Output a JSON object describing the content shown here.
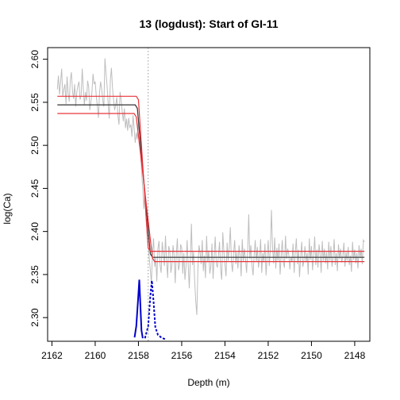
{
  "chart_data": {
    "type": "line",
    "title": "13 (logdust): Start of GI-11",
    "xlabel": "Depth (m)",
    "ylabel": "log(Ca)",
    "xlim": [
      2162.2,
      2147.3
    ],
    "ylim": [
      2.2725,
      2.6135
    ],
    "x_reversed": true,
    "x_ticks": [
      2162,
      2160,
      2158,
      2156,
      2154,
      2152,
      2150,
      2148
    ],
    "x_tick_labels": [
      "2162",
      "2160",
      "2158",
      "2156",
      "2154",
      "2152",
      "2150",
      "2148"
    ],
    "y_ticks": [
      2.3,
      2.35,
      2.4,
      2.45,
      2.5,
      2.55,
      2.6
    ],
    "y_tick_labels": [
      "2.30",
      "2.35",
      "2.40",
      "2.45",
      "2.50",
      "2.55",
      "2.60"
    ],
    "grid": false,
    "vertical_line": {
      "x": 2157.55,
      "color": "#999999",
      "style": "dotted"
    },
    "raw_series": {
      "color": "#bebebe",
      "x_start": 2161.75,
      "x_end": 2147.55,
      "points": [
        [
          2161.75,
          2.565
        ],
        [
          2161.7,
          2.581
        ],
        [
          2161.65,
          2.559
        ],
        [
          2161.6,
          2.574
        ],
        [
          2161.55,
          2.589
        ],
        [
          2161.5,
          2.557
        ],
        [
          2161.45,
          2.565
        ],
        [
          2161.4,
          2.571
        ],
        [
          2161.35,
          2.548
        ],
        [
          2161.3,
          2.58
        ],
        [
          2161.25,
          2.56
        ],
        [
          2161.2,
          2.551
        ],
        [
          2161.15,
          2.576
        ],
        [
          2161.1,
          2.585
        ],
        [
          2161.05,
          2.563
        ],
        [
          2161.0,
          2.554
        ],
        [
          2160.95,
          2.571
        ],
        [
          2160.9,
          2.545
        ],
        [
          2160.85,
          2.562
        ],
        [
          2160.8,
          2.569
        ],
        [
          2160.75,
          2.574
        ],
        [
          2160.7,
          2.553
        ],
        [
          2160.65,
          2.558
        ],
        [
          2160.6,
          2.589
        ],
        [
          2160.55,
          2.566
        ],
        [
          2160.5,
          2.547
        ],
        [
          2160.45,
          2.562
        ],
        [
          2160.4,
          2.552
        ],
        [
          2160.35,
          2.575
        ],
        [
          2160.3,
          2.568
        ],
        [
          2160.25,
          2.541
        ],
        [
          2160.2,
          2.55
        ],
        [
          2160.15,
          2.562
        ],
        [
          2160.1,
          2.583
        ],
        [
          2160.05,
          2.571
        ],
        [
          2160.0,
          2.574
        ],
        [
          2159.95,
          2.557
        ],
        [
          2159.9,
          2.546
        ],
        [
          2159.85,
          2.532
        ],
        [
          2159.8,
          2.561
        ],
        [
          2159.75,
          2.574
        ],
        [
          2159.7,
          2.565
        ],
        [
          2159.65,
          2.552
        ],
        [
          2159.6,
          2.545
        ],
        [
          2159.55,
          2.601
        ],
        [
          2159.5,
          2.584
        ],
        [
          2159.45,
          2.569
        ],
        [
          2159.4,
          2.549
        ],
        [
          2159.35,
          2.531
        ],
        [
          2159.3,
          2.575
        ],
        [
          2159.25,
          2.59
        ],
        [
          2159.2,
          2.567
        ],
        [
          2159.15,
          2.553
        ],
        [
          2159.1,
          2.541
        ],
        [
          2159.05,
          2.547
        ],
        [
          2159.0,
          2.556
        ],
        [
          2158.95,
          2.535
        ],
        [
          2158.9,
          2.524
        ],
        [
          2158.85,
          2.562
        ],
        [
          2158.8,
          2.553
        ],
        [
          2158.75,
          2.539
        ],
        [
          2158.7,
          2.528
        ],
        [
          2158.65,
          2.543
        ],
        [
          2158.6,
          2.52
        ],
        [
          2158.55,
          2.531
        ],
        [
          2158.5,
          2.517
        ],
        [
          2158.45,
          2.532
        ],
        [
          2158.4,
          2.521
        ],
        [
          2158.35,
          2.524
        ],
        [
          2158.3,
          2.51
        ],
        [
          2158.25,
          2.535
        ],
        [
          2158.2,
          2.52
        ],
        [
          2158.15,
          2.503
        ],
        [
          2158.1,
          2.515
        ],
        [
          2158.05,
          2.507
        ],
        [
          2158.0,
          2.527
        ],
        [
          2157.95,
          2.514
        ],
        [
          2157.9,
          2.492
        ],
        [
          2157.85,
          2.468
        ],
        [
          2157.8,
          2.45
        ],
        [
          2157.75,
          2.426
        ],
        [
          2157.7,
          2.448
        ],
        [
          2157.65,
          2.415
        ],
        [
          2157.6,
          2.397
        ],
        [
          2157.55,
          2.384
        ],
        [
          2157.5,
          2.369
        ],
        [
          2157.45,
          2.355
        ],
        [
          2157.4,
          2.34
        ],
        [
          2157.35,
          2.376
        ],
        [
          2157.3,
          2.392
        ],
        [
          2157.25,
          2.359
        ],
        [
          2157.2,
          2.37
        ],
        [
          2157.15,
          2.342
        ],
        [
          2157.1,
          2.38
        ],
        [
          2157.05,
          2.389
        ],
        [
          2157.0,
          2.361
        ],
        [
          2156.95,
          2.352
        ],
        [
          2156.9,
          2.388
        ],
        [
          2156.85,
          2.374
        ],
        [
          2156.8,
          2.36
        ],
        [
          2156.75,
          2.395
        ],
        [
          2156.7,
          2.366
        ],
        [
          2156.65,
          2.346
        ],
        [
          2156.6,
          2.383
        ],
        [
          2156.55,
          2.378
        ],
        [
          2156.5,
          2.352
        ],
        [
          2156.45,
          2.362
        ],
        [
          2156.4,
          2.384
        ],
        [
          2156.35,
          2.372
        ],
        [
          2156.3,
          2.34
        ],
        [
          2156.25,
          2.374
        ],
        [
          2156.2,
          2.392
        ],
        [
          2156.15,
          2.355
        ],
        [
          2156.1,
          2.361
        ],
        [
          2156.05,
          2.385
        ],
        [
          2156.0,
          2.381
        ],
        [
          2155.95,
          2.351
        ],
        [
          2155.9,
          2.375
        ],
        [
          2155.85,
          2.344
        ],
        [
          2155.8,
          2.36
        ],
        [
          2155.75,
          2.39
        ],
        [
          2155.7,
          2.362
        ],
        [
          2155.65,
          2.334
        ],
        [
          2155.6,
          2.367
        ],
        [
          2155.55,
          2.409
        ],
        [
          2155.5,
          2.361
        ],
        [
          2155.45,
          2.376
        ],
        [
          2155.4,
          2.343
        ],
        [
          2155.35,
          2.319
        ],
        [
          2155.3,
          2.303
        ],
        [
          2155.25,
          2.358
        ],
        [
          2155.2,
          2.384
        ],
        [
          2155.15,
          2.376
        ],
        [
          2155.1,
          2.362
        ],
        [
          2155.05,
          2.39
        ],
        [
          2155.0,
          2.354
        ],
        [
          2154.95,
          2.372
        ],
        [
          2154.9,
          2.346
        ],
        [
          2154.85,
          2.395
        ],
        [
          2154.8,
          2.364
        ],
        [
          2154.75,
          2.378
        ],
        [
          2154.7,
          2.351
        ],
        [
          2154.65,
          2.36
        ],
        [
          2154.6,
          2.386
        ],
        [
          2154.55,
          2.345
        ],
        [
          2154.5,
          2.37
        ],
        [
          2154.45,
          2.394
        ],
        [
          2154.4,
          2.363
        ],
        [
          2154.35,
          2.358
        ],
        [
          2154.3,
          2.372
        ],
        [
          2154.25,
          2.388
        ],
        [
          2154.2,
          2.356
        ],
        [
          2154.15,
          2.344
        ],
        [
          2154.1,
          2.399
        ],
        [
          2154.05,
          2.377
        ],
        [
          2154.0,
          2.362
        ],
        [
          2153.95,
          2.348
        ],
        [
          2153.9,
          2.387
        ],
        [
          2153.85,
          2.366
        ],
        [
          2153.8,
          2.381
        ],
        [
          2153.75,
          2.405
        ],
        [
          2153.7,
          2.364
        ],
        [
          2153.65,
          2.353
        ],
        [
          2153.6,
          2.375
        ],
        [
          2153.55,
          2.39
        ],
        [
          2153.5,
          2.362
        ],
        [
          2153.45,
          2.376
        ],
        [
          2153.4,
          2.357
        ],
        [
          2153.35,
          2.384
        ],
        [
          2153.3,
          2.372
        ],
        [
          2153.25,
          2.348
        ],
        [
          2153.2,
          2.391
        ],
        [
          2153.15,
          2.365
        ],
        [
          2153.1,
          2.38
        ],
        [
          2153.05,
          2.368
        ],
        [
          2153.0,
          2.352
        ],
        [
          2152.95,
          2.377
        ],
        [
          2152.9,
          2.42
        ],
        [
          2152.85,
          2.368
        ],
        [
          2152.8,
          2.384
        ],
        [
          2152.75,
          2.361
        ],
        [
          2152.7,
          2.349
        ],
        [
          2152.65,
          2.372
        ],
        [
          2152.6,
          2.39
        ],
        [
          2152.55,
          2.365
        ],
        [
          2152.5,
          2.382
        ],
        [
          2152.45,
          2.358
        ],
        [
          2152.4,
          2.37
        ],
        [
          2152.35,
          2.391
        ],
        [
          2152.3,
          2.352
        ],
        [
          2152.25,
          2.375
        ],
        [
          2152.2,
          2.364
        ],
        [
          2152.15,
          2.386
        ],
        [
          2152.1,
          2.349
        ],
        [
          2152.05,
          2.371
        ],
        [
          2152.0,
          2.39
        ],
        [
          2151.95,
          2.36
        ],
        [
          2151.9,
          2.378
        ],
        [
          2151.85,
          2.425
        ],
        [
          2151.8,
          2.382
        ],
        [
          2151.75,
          2.363
        ],
        [
          2151.7,
          2.393
        ],
        [
          2151.65,
          2.357
        ],
        [
          2151.6,
          2.381
        ],
        [
          2151.55,
          2.366
        ],
        [
          2151.5,
          2.386
        ],
        [
          2151.45,
          2.35
        ],
        [
          2151.4,
          2.371
        ],
        [
          2151.35,
          2.39
        ],
        [
          2151.3,
          2.364
        ],
        [
          2151.25,
          2.358
        ],
        [
          2151.2,
          2.395
        ],
        [
          2151.15,
          2.368
        ],
        [
          2151.1,
          2.38
        ],
        [
          2151.05,
          2.374
        ],
        [
          2151.0,
          2.356
        ],
        [
          2150.95,
          2.37
        ],
        [
          2150.9,
          2.365
        ],
        [
          2150.85,
          2.386
        ],
        [
          2150.8,
          2.352
        ],
        [
          2150.75,
          2.374
        ],
        [
          2150.7,
          2.392
        ],
        [
          2150.65,
          2.362
        ],
        [
          2150.6,
          2.379
        ],
        [
          2150.55,
          2.347
        ],
        [
          2150.5,
          2.37
        ],
        [
          2150.45,
          2.388
        ],
        [
          2150.4,
          2.359
        ],
        [
          2150.35,
          2.365
        ],
        [
          2150.3,
          2.383
        ],
        [
          2150.25,
          2.364
        ],
        [
          2150.2,
          2.375
        ],
        [
          2150.15,
          2.35
        ],
        [
          2150.1,
          2.392
        ],
        [
          2150.05,
          2.367
        ],
        [
          2150.0,
          2.383
        ],
        [
          2149.95,
          2.355
        ],
        [
          2149.9,
          2.372
        ],
        [
          2149.85,
          2.394
        ],
        [
          2149.8,
          2.361
        ],
        [
          2149.75,
          2.379
        ],
        [
          2149.7,
          2.358
        ],
        [
          2149.65,
          2.385
        ],
        [
          2149.6,
          2.374
        ],
        [
          2149.55,
          2.352
        ],
        [
          2149.5,
          2.389
        ],
        [
          2149.45,
          2.366
        ],
        [
          2149.4,
          2.38
        ],
        [
          2149.35,
          2.363
        ],
        [
          2149.3,
          2.376
        ],
        [
          2149.25,
          2.356
        ],
        [
          2149.2,
          2.388
        ],
        [
          2149.15,
          2.366
        ],
        [
          2149.1,
          2.383
        ],
        [
          2149.05,
          2.359
        ],
        [
          2149.0,
          2.37
        ],
        [
          2148.95,
          2.391
        ],
        [
          2148.9,
          2.361
        ],
        [
          2148.85,
          2.375
        ],
        [
          2148.8,
          2.354
        ],
        [
          2148.75,
          2.385
        ],
        [
          2148.7,
          2.368
        ],
        [
          2148.65,
          2.38
        ],
        [
          2148.6,
          2.364
        ],
        [
          2148.55,
          2.371
        ],
        [
          2148.5,
          2.387
        ],
        [
          2148.45,
          2.359
        ],
        [
          2148.4,
          2.376
        ],
        [
          2148.35,
          2.366
        ],
        [
          2148.3,
          2.382
        ],
        [
          2148.25,
          2.361
        ],
        [
          2148.2,
          2.372
        ],
        [
          2148.15,
          2.353
        ],
        [
          2148.1,
          2.388
        ],
        [
          2148.05,
          2.367
        ],
        [
          2148.0,
          2.379
        ],
        [
          2147.95,
          2.363
        ],
        [
          2147.9,
          2.375
        ],
        [
          2147.85,
          2.357
        ],
        [
          2147.8,
          2.384
        ],
        [
          2147.75,
          2.369
        ],
        [
          2147.7,
          2.38
        ],
        [
          2147.65,
          2.362
        ],
        [
          2147.6,
          2.39
        ],
        [
          2147.55,
          2.388
        ]
      ]
    },
    "fit_series": [
      {
        "role": "fit",
        "color": "#333333",
        "upper_level": 2.547,
        "lower_level": 2.37,
        "transition_start": 2158.05,
        "transition_end": 2157.45,
        "x_start": 2161.75,
        "x_end": 2147.55
      },
      {
        "role": "upper-bound",
        "color": "#e8343a",
        "upper_level": 2.557,
        "lower_level": 2.377,
        "transition_start": 2158.0,
        "transition_end": 2157.55,
        "x_start": 2161.75,
        "x_end": 2147.55
      },
      {
        "role": "lower-bound",
        "color": "#e8343a",
        "upper_level": 2.537,
        "lower_level": 2.365,
        "transition_start": 2158.1,
        "transition_end": 2157.35,
        "x_start": 2161.75,
        "x_end": 2147.55
      }
    ],
    "density_series": [
      {
        "role": "onset-density",
        "color": "#0000cc",
        "style": "solid",
        "x": [
          2158.18,
          2158.1,
          2158.02,
          2157.96,
          2157.92,
          2157.86,
          2157.8
        ],
        "y": [
          2.277,
          2.29,
          2.32,
          2.344,
          2.32,
          2.285,
          2.276
        ]
      },
      {
        "role": "end-density",
        "color": "#0000cc",
        "style": "dashed",
        "x": [
          2157.7,
          2157.55,
          2157.45,
          2157.38,
          2157.3,
          2157.22,
          2157.1,
          2156.9,
          2156.75
        ],
        "y": [
          2.276,
          2.29,
          2.325,
          2.343,
          2.318,
          2.289,
          2.28,
          2.276,
          2.275
        ]
      }
    ]
  }
}
